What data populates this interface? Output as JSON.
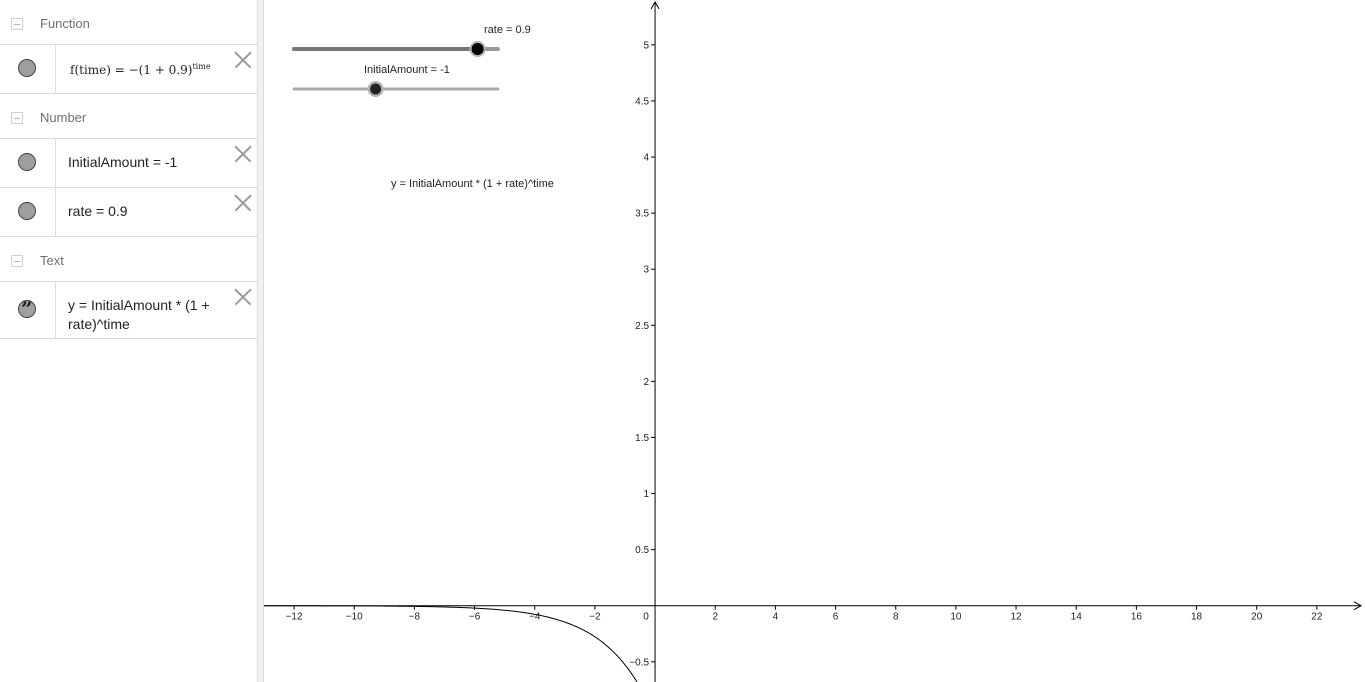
{
  "algebra": {
    "groups": [
      {
        "title": "Function",
        "items": [
          {
            "label": "f(time) = −(1 + 0.9)",
            "superscript": "time"
          }
        ]
      },
      {
        "title": "Number",
        "items": [
          {
            "label": "InitialAmount = -1"
          },
          {
            "label": "rate = 0.9"
          }
        ]
      },
      {
        "title": "Text",
        "items": [
          {
            "line1": "y = InitialAmount * (1 +",
            "line2": "rate)^time"
          }
        ]
      }
    ]
  },
  "graphics": {
    "sliders": [
      {
        "label": "rate = 0.9",
        "min": 0,
        "max": 1,
        "value": 0.9
      },
      {
        "label": "InitialAmount = -1",
        "min": -5,
        "max": 5,
        "value": -1
      }
    ],
    "text_object": "y = InitialAmount * (1 + rate)^time",
    "x_ticks": [
      "−12",
      "−10",
      "−8",
      "−6",
      "−4",
      "−2",
      "0",
      "2",
      "4",
      "6",
      "8",
      "10",
      "12",
      "14",
      "16",
      "18",
      "20",
      "22"
    ],
    "y_ticks": [
      "5",
      "4.5",
      "4",
      "3.5",
      "3",
      "2.5",
      "2",
      "1.5",
      "1",
      "0.5",
      "−0.5"
    ],
    "function": {
      "initial_amount": -1,
      "rate": 0.9
    },
    "view": {
      "xmin": -13,
      "xmax": 23.6,
      "ymin": -0.68,
      "ymax": 5.4
    }
  }
}
